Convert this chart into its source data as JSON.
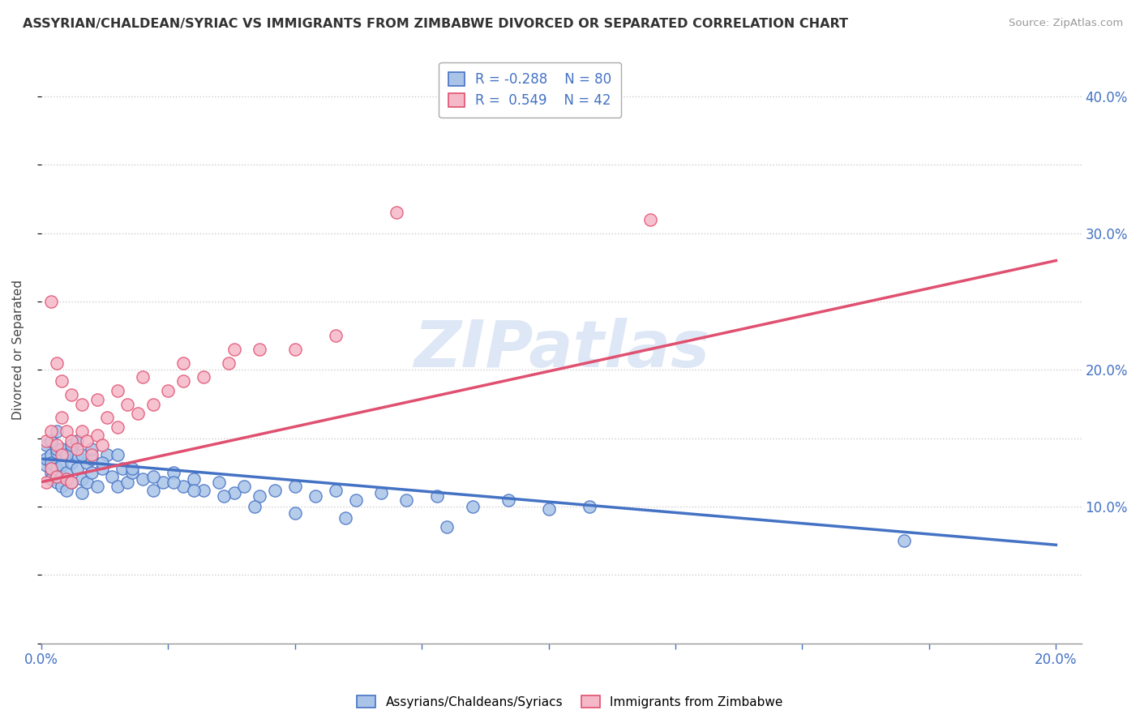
{
  "title": "ASSYRIAN/CHALDEAN/SYRIAC VS IMMIGRANTS FROM ZIMBABWE DIVORCED OR SEPARATED CORRELATION CHART",
  "source": "Source: ZipAtlas.com",
  "ylabel": "Divorced or Separated",
  "blue_label": "Assyrians/Chaldeans/Syriacs",
  "pink_label": "Immigrants from Zimbabwe",
  "blue_R": -0.288,
  "blue_N": 80,
  "pink_R": 0.549,
  "pink_N": 42,
  "blue_color": "#aac4e8",
  "pink_color": "#f5b8c8",
  "blue_line_color": "#4472c4",
  "pink_line_color": "#e05070",
  "xlim": [
    0.0,
    0.205
  ],
  "ylim": [
    0.0,
    0.43
  ],
  "xticks": [
    0.0,
    0.025,
    0.05,
    0.075,
    0.1,
    0.125,
    0.15,
    0.175,
    0.2
  ],
  "yticks": [
    0.0,
    0.05,
    0.1,
    0.15,
    0.2,
    0.25,
    0.3,
    0.35,
    0.4
  ],
  "blue_x": [
    0.001,
    0.001,
    0.001,
    0.002,
    0.002,
    0.002,
    0.002,
    0.002,
    0.003,
    0.003,
    0.003,
    0.003,
    0.004,
    0.004,
    0.004,
    0.005,
    0.005,
    0.005,
    0.006,
    0.006,
    0.006,
    0.007,
    0.007,
    0.008,
    0.008,
    0.009,
    0.009,
    0.01,
    0.01,
    0.011,
    0.012,
    0.013,
    0.014,
    0.015,
    0.016,
    0.017,
    0.018,
    0.02,
    0.022,
    0.024,
    0.026,
    0.028,
    0.03,
    0.032,
    0.035,
    0.038,
    0.04,
    0.043,
    0.046,
    0.05,
    0.054,
    0.058,
    0.062,
    0.067,
    0.072,
    0.078,
    0.085,
    0.092,
    0.1,
    0.108,
    0.002,
    0.003,
    0.004,
    0.005,
    0.006,
    0.007,
    0.008,
    0.01,
    0.012,
    0.015,
    0.018,
    0.022,
    0.026,
    0.03,
    0.036,
    0.042,
    0.05,
    0.06,
    0.08,
    0.17
  ],
  "blue_y": [
    0.13,
    0.145,
    0.135,
    0.125,
    0.138,
    0.148,
    0.132,
    0.12,
    0.14,
    0.128,
    0.118,
    0.142,
    0.13,
    0.122,
    0.115,
    0.138,
    0.125,
    0.112,
    0.132,
    0.142,
    0.118,
    0.128,
    0.138,
    0.12,
    0.11,
    0.132,
    0.118,
    0.125,
    0.135,
    0.115,
    0.128,
    0.138,
    0.122,
    0.115,
    0.128,
    0.118,
    0.125,
    0.12,
    0.112,
    0.118,
    0.125,
    0.115,
    0.12,
    0.112,
    0.118,
    0.11,
    0.115,
    0.108,
    0.112,
    0.115,
    0.108,
    0.112,
    0.105,
    0.11,
    0.105,
    0.108,
    0.1,
    0.105,
    0.098,
    0.1,
    0.148,
    0.155,
    0.142,
    0.138,
    0.145,
    0.148,
    0.138,
    0.142,
    0.132,
    0.138,
    0.128,
    0.122,
    0.118,
    0.112,
    0.108,
    0.1,
    0.095,
    0.092,
    0.085,
    0.075
  ],
  "pink_x": [
    0.001,
    0.001,
    0.002,
    0.002,
    0.003,
    0.003,
    0.004,
    0.004,
    0.005,
    0.005,
    0.006,
    0.006,
    0.007,
    0.008,
    0.009,
    0.01,
    0.011,
    0.012,
    0.013,
    0.015,
    0.017,
    0.019,
    0.022,
    0.025,
    0.028,
    0.032,
    0.037,
    0.043,
    0.05,
    0.058,
    0.002,
    0.003,
    0.004,
    0.006,
    0.008,
    0.011,
    0.015,
    0.02,
    0.028,
    0.038,
    0.07,
    0.12
  ],
  "pink_y": [
    0.148,
    0.118,
    0.155,
    0.128,
    0.145,
    0.122,
    0.165,
    0.138,
    0.155,
    0.12,
    0.148,
    0.118,
    0.142,
    0.155,
    0.148,
    0.138,
    0.152,
    0.145,
    0.165,
    0.158,
    0.175,
    0.168,
    0.175,
    0.185,
    0.192,
    0.195,
    0.205,
    0.215,
    0.215,
    0.225,
    0.25,
    0.205,
    0.192,
    0.182,
    0.175,
    0.178,
    0.185,
    0.195,
    0.205,
    0.215,
    0.315,
    0.31
  ],
  "watermark_text": "ZIPatlas",
  "watermark_color": "#c8d8f0",
  "blue_line_y0": 0.135,
  "blue_line_y1": 0.072,
  "pink_line_y0": 0.118,
  "pink_line_y1": 0.28
}
